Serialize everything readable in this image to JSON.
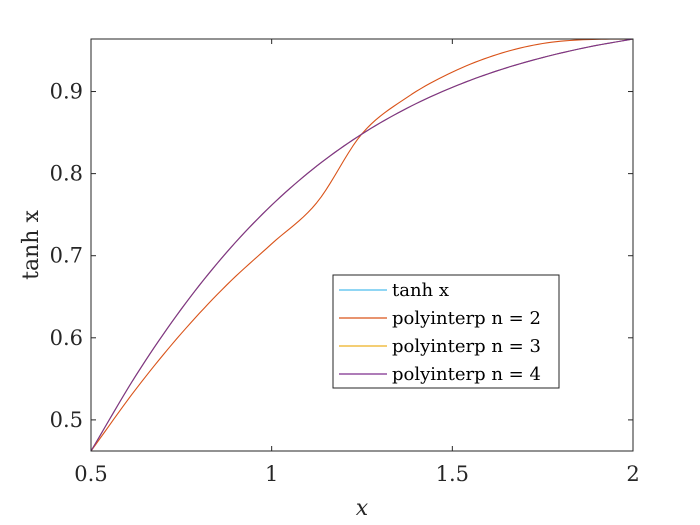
{
  "chart_data": {
    "type": "line",
    "title": "",
    "xlabel": "x",
    "ylabel": "tanh x",
    "xlim": [
      0.5,
      2
    ],
    "ylim": [
      0.4621,
      0.964
    ],
    "xticks": [
      0.5,
      1,
      1.5,
      2
    ],
    "xtick_labels": [
      "0.5",
      "1",
      "1.5",
      "2"
    ],
    "yticks": [
      0.5,
      0.6,
      0.7,
      0.8,
      0.9
    ],
    "ytick_labels": [
      "0.5",
      "0.6",
      "0.7",
      "0.8",
      "0.9"
    ],
    "grid": false,
    "legend_position": "lower-right",
    "series": [
      {
        "name": "tanh x",
        "color": "#4DBEEE",
        "x": [
          0.5,
          0.625,
          0.75,
          0.875,
          1.0,
          1.125,
          1.25,
          1.375,
          1.5,
          1.625,
          1.75,
          1.875,
          2.0
        ],
        "values": [
          0.4621,
          0.5546,
          0.6351,
          0.7039,
          0.7616,
          0.8093,
          0.8483,
          0.8798,
          0.9051,
          0.9254,
          0.9414,
          0.9541,
          0.964
        ]
      },
      {
        "name": "polyinterp n = 2",
        "color": "#D95319",
        "x": [
          0.5,
          0.625,
          0.75,
          0.875,
          1.0,
          1.125,
          1.25,
          1.375,
          1.5,
          1.625,
          1.75,
          1.875,
          2.0
        ],
        "values": [
          0.4621,
          0.5379,
          0.6053,
          0.6641,
          0.7145,
          0.7647,
          0.8486,
          0.893,
          0.9237,
          0.9453,
          0.9585,
          0.9633,
          0.964
        ]
      },
      {
        "name": "polyinterp n = 3",
        "color": "#EDB120",
        "x": [
          0.5,
          0.625,
          0.75,
          0.875,
          1.0,
          1.125,
          1.25,
          1.375,
          1.5,
          1.625,
          1.75,
          1.875,
          2.0
        ],
        "values": [
          0.4621,
          0.5546,
          0.6351,
          0.7039,
          0.7616,
          0.8093,
          0.8483,
          0.8798,
          0.9051,
          0.9254,
          0.9414,
          0.9541,
          0.964
        ]
      },
      {
        "name": "polyinterp n = 4",
        "color": "#7E2F8E",
        "x": [
          0.5,
          0.625,
          0.75,
          0.875,
          1.0,
          1.125,
          1.25,
          1.375,
          1.5,
          1.625,
          1.75,
          1.875,
          2.0
        ],
        "values": [
          0.4621,
          0.5546,
          0.6351,
          0.7039,
          0.7616,
          0.8093,
          0.8483,
          0.8798,
          0.9051,
          0.9254,
          0.9414,
          0.9541,
          0.964
        ]
      }
    ]
  }
}
